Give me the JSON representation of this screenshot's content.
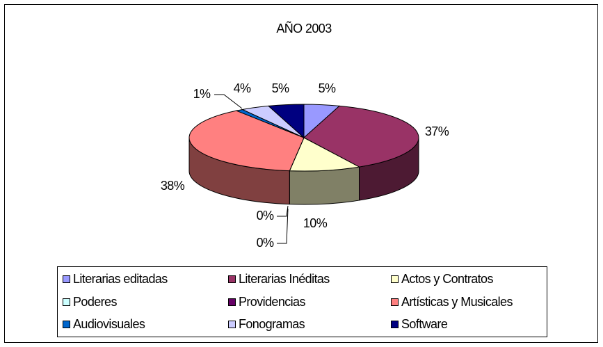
{
  "chart_data": {
    "type": "pie",
    "title": "AÑO 2003",
    "categories": [
      "Literarias editadas",
      "Literarias Inéditas",
      "Actos y Contratos",
      "Poderes",
      "Providencias",
      "Artísticas y Musicales",
      "Audiovisuales",
      "Fonogramas",
      "Software"
    ],
    "values": [
      5,
      37,
      10,
      0,
      0,
      38,
      1,
      4,
      5
    ],
    "value_labels": [
      "5%",
      "37%",
      "10%",
      "0%",
      "0%",
      "38%",
      "1%",
      "4%",
      "5%"
    ],
    "colors": [
      "#9999ff",
      "#993366",
      "#ffffcc",
      "#ccffff",
      "#660066",
      "#ff8080",
      "#0066cc",
      "#ccccff",
      "#000080"
    ],
    "legend": "bottom"
  }
}
